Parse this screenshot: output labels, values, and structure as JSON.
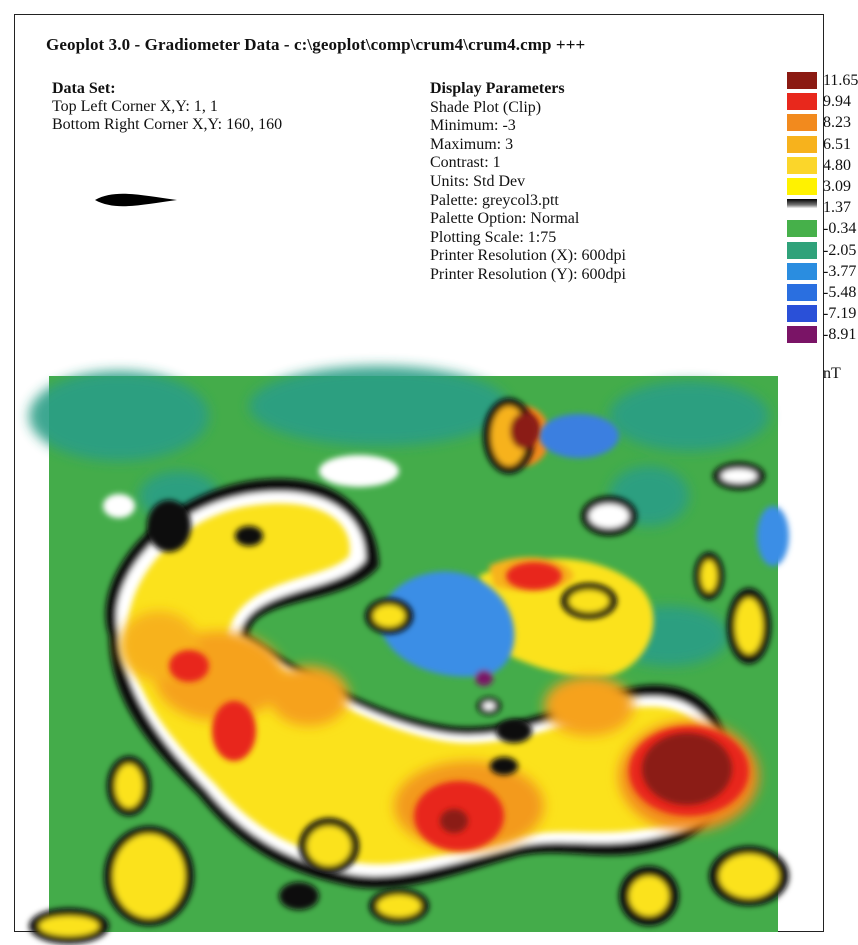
{
  "header": {
    "title": "Geoplot 3.0 - Gradiometer Data  -  c:\\geoplot\\comp\\crum4\\crum4.cmp +++"
  },
  "data_set": {
    "heading": "Data Set:",
    "top_left": "Top Left Corner X,Y: 1, 1",
    "bottom_right": "Bottom Right Corner X,Y: 160, 160"
  },
  "display_parameters": {
    "heading": "Display Parameters",
    "items": [
      "Shade Plot (Clip)",
      "Minimum: -3",
      "Maximum: 3",
      "Contrast: 1",
      "Units: Std Dev",
      "Palette: greycol3.ptt",
      "Palette Option: Normal",
      "Plotting Scale: 1:75",
      "Printer Resolution (X): 600dpi",
      "Printer Resolution (Y): 600dpi"
    ]
  },
  "legend": {
    "entries": [
      {
        "label": "11.65",
        "color": "#8b1a12"
      },
      {
        "label": "9.94",
        "color": "#e8281c"
      },
      {
        "label": "8.23",
        "color": "#f28a1e"
      },
      {
        "label": "6.51",
        "color": "#f7b21c"
      },
      {
        "label": "4.80",
        "color": "#fbd62a"
      },
      {
        "label": "3.09",
        "color": "#fff200"
      },
      {
        "label": "1.37",
        "color": "gradient-black-white"
      },
      {
        "label": "-0.34",
        "color": "#46b04a"
      },
      {
        "label": "-2.05",
        "color": "#2fa27a"
      },
      {
        "label": "-3.77",
        "color": "#2a8de0"
      },
      {
        "label": "-5.48",
        "color": "#2a6fe0"
      },
      {
        "label": "-7.19",
        "color": "#2a50d8"
      },
      {
        "label": "-8.91",
        "color": "#7a1466"
      }
    ],
    "unit": "nT"
  },
  "north_arrow": {
    "icon": "north-arrow-icon"
  }
}
